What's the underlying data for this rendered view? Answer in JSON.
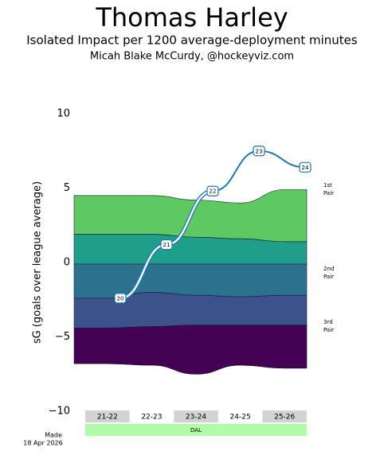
{
  "chart_data": {
    "type": "stream",
    "title": "Thomas Harley",
    "subtitle": "Isolated Impact per 1200 average-deployment minutes",
    "credit": "Micah Blake McCurdy, @hockeyviz.com",
    "made": [
      "Made",
      "18 Apr 2026"
    ],
    "ylabel": "sG (goals over league average)",
    "ylim": [
      -10,
      10
    ],
    "yticks": [
      {
        "value": -10,
        "label": "−10"
      },
      {
        "value": -5,
        "label": "−5"
      },
      0,
      5,
      10
    ],
    "categories": [
      "21-22",
      "22-23",
      "23-24",
      "24-25",
      "25-26"
    ],
    "team": "DAL",
    "baseline": [
      -6.8,
      -6.9,
      -7.5,
      -6.9,
      -7.1
    ],
    "series": [
      {
        "color": "#440154",
        "values": [
          2.4,
          2.6,
          3.3,
          2.7,
          2.9
        ]
      },
      {
        "color": "#3b528b",
        "values": [
          2.0,
          2.3,
          2.0,
          1.9,
          2.0
        ]
      },
      {
        "color": "#2c728e",
        "values": [
          2.3,
          1.9,
          2.1,
          2.2,
          2.1
        ]
      },
      {
        "color": "#1f9e89",
        "values": [
          2.0,
          2.0,
          1.8,
          1.7,
          1.5
        ]
      },
      {
        "color": "#5ec962",
        "values": [
          2.6,
          2.6,
          2.5,
          2.4,
          3.5
        ]
      }
    ],
    "pair_labels": [
      [
        "1st",
        "Pair"
      ],
      [
        "2nd",
        "Pair"
      ],
      [
        "3rd",
        "Pair"
      ]
    ],
    "line": {
      "color": "#1f77b4",
      "values": [
        -2.4,
        1.2,
        4.8,
        7.5,
        6.4
      ],
      "labels": [
        20,
        21,
        22,
        23,
        24
      ]
    }
  }
}
